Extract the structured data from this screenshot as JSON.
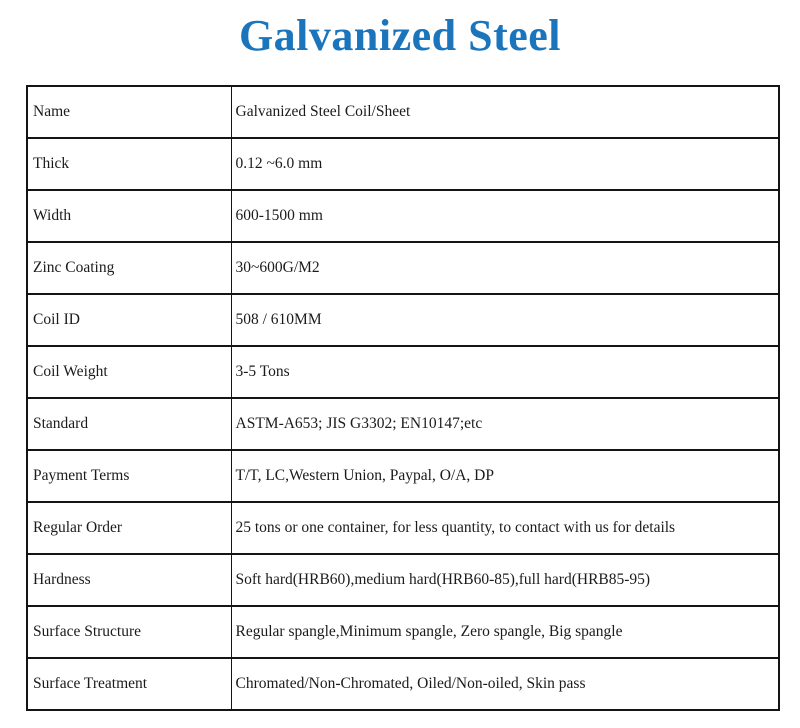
{
  "page": {
    "title": "Galvanized Steel",
    "title_color": "#1b75bc"
  },
  "spec_table": {
    "rows": [
      {
        "label": "Name",
        "value": "Galvanized Steel Coil/Sheet"
      },
      {
        "label": "Thick",
        "value": "0.12 ~6.0 mm"
      },
      {
        "label": "Width",
        "value": "600-1500 mm"
      },
      {
        "label": "Zinc Coating",
        "value": "30~600G/M2"
      },
      {
        "label": "Coil ID",
        "value": "508 / 610MM"
      },
      {
        "label": "Coil Weight",
        "value": "3-5 Tons"
      },
      {
        "label": "Standard",
        "value": "ASTM-A653; JIS G3302; EN10147;etc"
      },
      {
        "label": "Payment Terms",
        "value": "T/T, LC,Western Union, Paypal, O/A, DP"
      },
      {
        "label": "Regular Order",
        "value": "25 tons or one container, for less quantity, to contact with us for details"
      },
      {
        "label": "Hardness",
        "value": "Soft hard(HRB60),medium hard(HRB60-85),full hard(HRB85-95)"
      },
      {
        "label": "Surface Structure",
        "value": "Regular spangle,Minimum spangle, Zero spangle, Big spangle"
      },
      {
        "label": "Surface Treatment",
        "value": "Chromated/Non-Chromated, Oiled/Non-oiled, Skin pass"
      }
    ]
  }
}
